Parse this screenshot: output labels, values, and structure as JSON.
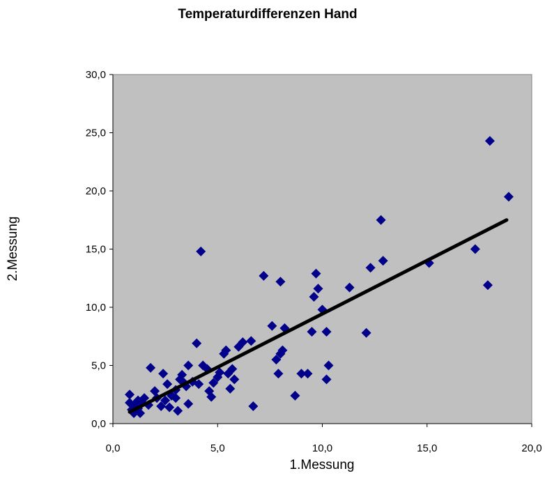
{
  "chart_data": {
    "type": "scatter",
    "title": "Temperaturdifferenzen Hand",
    "xlabel": "1.Messung",
    "ylabel": "2.Messung",
    "xlim": [
      0,
      20
    ],
    "ylim": [
      0,
      30
    ],
    "x_ticks": [
      "0,0",
      "5,0",
      "10,0",
      "15,0",
      "20,0"
    ],
    "y_ticks": [
      "0,0",
      "5,0",
      "10,0",
      "15,0",
      "20,0",
      "25,0",
      "30,0"
    ],
    "grid": false,
    "plot_background": "#c0c0c0",
    "series": [
      {
        "marker": "diamond",
        "color": "#00008b",
        "points": [
          [
            0.8,
            2.5
          ],
          [
            0.8,
            1.8
          ],
          [
            0.9,
            1.2
          ],
          [
            1.0,
            1.6
          ],
          [
            1.0,
            0.9
          ],
          [
            1.2,
            1.3
          ],
          [
            1.2,
            2.0
          ],
          [
            1.3,
            0.9
          ],
          [
            1.4,
            1.8
          ],
          [
            1.5,
            2.2
          ],
          [
            1.7,
            1.6
          ],
          [
            1.8,
            4.8
          ],
          [
            2.0,
            2.8
          ],
          [
            2.1,
            2.2
          ],
          [
            2.3,
            1.5
          ],
          [
            2.4,
            4.3
          ],
          [
            2.5,
            2.0
          ],
          [
            2.6,
            3.4
          ],
          [
            2.7,
            1.4
          ],
          [
            2.8,
            2.4
          ],
          [
            3.0,
            2.9
          ],
          [
            3.0,
            2.2
          ],
          [
            3.1,
            1.1
          ],
          [
            3.2,
            3.8
          ],
          [
            3.3,
            4.2
          ],
          [
            3.4,
            3.5
          ],
          [
            3.5,
            3.2
          ],
          [
            3.6,
            5.0
          ],
          [
            3.6,
            1.7
          ],
          [
            3.8,
            3.6
          ],
          [
            4.0,
            6.9
          ],
          [
            4.1,
            3.4
          ],
          [
            4.2,
            14.8
          ],
          [
            4.3,
            5.0
          ],
          [
            4.5,
            4.7
          ],
          [
            4.6,
            2.8
          ],
          [
            4.7,
            2.3
          ],
          [
            4.8,
            3.5
          ],
          [
            5.0,
            4.0
          ],
          [
            5.1,
            4.4
          ],
          [
            5.3,
            6.0
          ],
          [
            5.4,
            6.3
          ],
          [
            5.5,
            4.3
          ],
          [
            5.6,
            3.0
          ],
          [
            5.7,
            4.7
          ],
          [
            5.8,
            3.8
          ],
          [
            6.0,
            6.6
          ],
          [
            6.2,
            7.0
          ],
          [
            6.6,
            7.1
          ],
          [
            6.7,
            1.5
          ],
          [
            7.2,
            12.7
          ],
          [
            7.6,
            8.4
          ],
          [
            7.8,
            5.5
          ],
          [
            7.9,
            4.3
          ],
          [
            8.0,
            6.0
          ],
          [
            8.0,
            12.2
          ],
          [
            8.1,
            6.3
          ],
          [
            8.2,
            8.2
          ],
          [
            8.7,
            2.4
          ],
          [
            9.0,
            4.3
          ],
          [
            9.3,
            4.3
          ],
          [
            9.5,
            7.9
          ],
          [
            9.6,
            10.9
          ],
          [
            9.7,
            12.9
          ],
          [
            9.8,
            11.6
          ],
          [
            10.0,
            9.8
          ],
          [
            10.2,
            7.9
          ],
          [
            10.2,
            3.8
          ],
          [
            10.3,
            5.0
          ],
          [
            11.3,
            11.7
          ],
          [
            12.1,
            7.8
          ],
          [
            12.3,
            13.4
          ],
          [
            12.8,
            17.5
          ],
          [
            12.9,
            14.0
          ],
          [
            15.1,
            13.8
          ],
          [
            17.3,
            15.0
          ],
          [
            17.9,
            11.9
          ],
          [
            18.0,
            24.3
          ],
          [
            18.9,
            19.5
          ]
        ]
      }
    ],
    "trendline": {
      "type": "linear",
      "color": "#000000",
      "points": [
        [
          0.8,
          1.0
        ],
        [
          18.8,
          17.5
        ]
      ]
    }
  }
}
